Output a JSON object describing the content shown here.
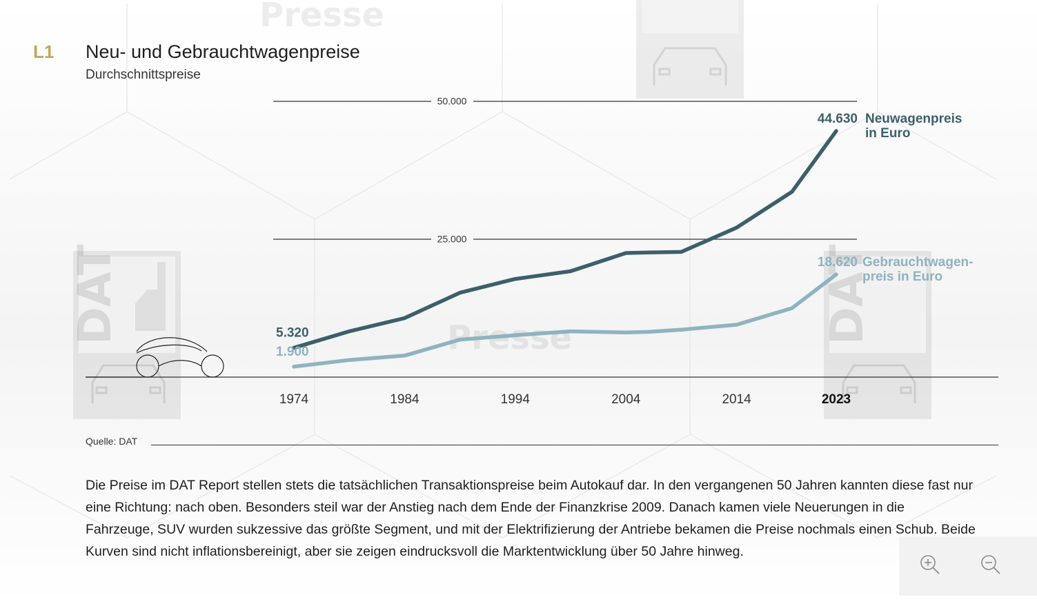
{
  "header": {
    "figure_number": "L1",
    "title": "Neu- und Gebrauchtwagenpreise",
    "subtitle": "Durchschnittspreise"
  },
  "watermarks": {
    "text": "Presse",
    "logo_text": "DAT"
  },
  "chart_data": {
    "type": "line",
    "title": "Neu- und Gebrauchtwagenpreise",
    "subtitle": "Durchschnittspreise",
    "x": [
      1974,
      1979,
      1984,
      1989,
      1994,
      1999,
      2004,
      2006,
      2009,
      2014,
      2019,
      2023
    ],
    "x_ticks": [
      "1974",
      "1984",
      "1994",
      "2004",
      "2014",
      "2023"
    ],
    "x_tick_highlight": "2023",
    "y_gridlines": [
      {
        "value": 50000,
        "label": "50.000"
      },
      {
        "value": 25000,
        "label": "25.000"
      }
    ],
    "ylim": [
      0,
      50000
    ],
    "grid": true,
    "series": [
      {
        "name": "Neuwagenpreis in Euro",
        "label_lines": [
          "Neuwagenpreis",
          "in Euro"
        ],
        "color": "#3d5f6c",
        "values": [
          5320,
          8300,
          10700,
          15300,
          17800,
          19200,
          22500,
          22600,
          22700,
          27100,
          33600,
          44630
        ],
        "start_label": "5.320",
        "end_label": "44.630"
      },
      {
        "name": "Gebrauchtwagenpreis in Euro",
        "label_lines": [
          "Gebrauchtwagen-",
          "preis in Euro"
        ],
        "color": "#8fb3c0",
        "values": [
          1900,
          3100,
          3900,
          6800,
          7600,
          8300,
          8100,
          8200,
          8600,
          9500,
          12500,
          18620
        ],
        "start_label": "1.900",
        "end_label": "18.620"
      }
    ]
  },
  "source": "Quelle: DAT",
  "description": "Die Preise im DAT Report stellen stets die tatsächlichen Transaktionspreise beim Autokauf dar. In den vergangenen 50 Jahren kannten diese fast nur eine Richtung: nach oben. Besonders steil war der Anstieg nach dem Ende der Finanzkrise 2009. Danach kamen viele Neuerungen in die Fahrzeuge, SUV wurden sukzessive das größte Segment, und mit der Elektrifizierung der Antriebe bekamen die Preise nochmals einen Schub. Beide Kurven sind nicht inflationsbereinigt, aber sie zeigen eindrucksvoll die Marktentwicklung über 50 Jahre hinweg.",
  "controls": {
    "zoom_in_icon": "zoom-in-icon",
    "zoom_out_icon": "zoom-out-icon"
  }
}
